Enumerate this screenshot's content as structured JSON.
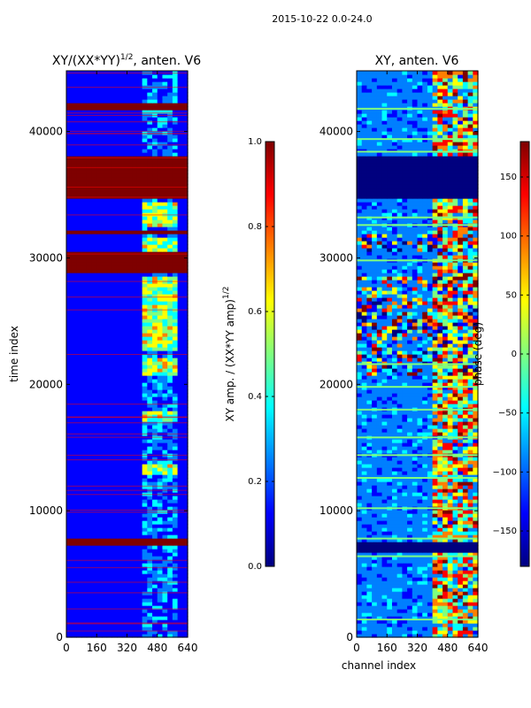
{
  "figure": {
    "suptitle": "2015-10-22 0.0-24.0"
  },
  "colormap": [
    "#00007f",
    "#0000ff",
    "#007fff",
    "#00ffff",
    "#7fff7f",
    "#ffff00",
    "#ff7f00",
    "#ff0000",
    "#7f0000"
  ],
  "chart_data": [
    {
      "type": "heatmap",
      "title_main": "XY/(XX*YY)",
      "title_sup": "1/2",
      "title_suffix": ", anten. V6",
      "xlabel": "",
      "ylabel": "time index",
      "xlim": [
        0,
        640
      ],
      "ylim": [
        0,
        44800
      ],
      "x_ticks": [
        0,
        160,
        320,
        480,
        640
      ],
      "x_tick_labels": [
        "0",
        "160",
        "320",
        "480",
        "640"
      ],
      "y_ticks": [
        0,
        10000,
        20000,
        30000,
        40000
      ],
      "y_tick_labels": [
        "0",
        "10000",
        "20000",
        "30000",
        "40000"
      ],
      "colorbar": {
        "label_main": "XY amp. / (XX*YY amp)",
        "label_sup": "1/2",
        "range": [
          0.0,
          1.0
        ],
        "ticks": [
          0.0,
          0.2,
          0.4,
          0.6,
          0.8,
          1.0
        ],
        "tick_labels": [
          "0.0",
          "0.2",
          "0.4",
          "0.6",
          "0.8",
          "1.0"
        ]
      },
      "base_value": 0.18,
      "active_channel_band": [
        400,
        590
      ],
      "bright_time_bands": [
        [
          12800,
          13800
        ],
        [
          17200,
          17800
        ],
        [
          20800,
          22200
        ],
        [
          22800,
          28600
        ],
        [
          30600,
          31600
        ],
        [
          32400,
          34400
        ]
      ],
      "saturated_time_bands": [
        [
          7400,
          7800
        ],
        [
          28800,
          30400
        ],
        [
          31800,
          32200
        ],
        [
          34600,
          38200
        ],
        [
          41600,
          42200
        ]
      ]
    },
    {
      "type": "heatmap",
      "title_main": "XY, anten. V6",
      "xlabel": "channel index",
      "ylabel": "",
      "xlim": [
        0,
        640
      ],
      "ylim": [
        0,
        44800
      ],
      "x_ticks": [
        0,
        160,
        320,
        480,
        640
      ],
      "x_tick_labels": [
        "0",
        "160",
        "320",
        "480",
        "640"
      ],
      "y_ticks": [
        0,
        10000,
        20000,
        30000,
        40000
      ],
      "y_tick_labels": [
        "0",
        "10000",
        "20000",
        "30000",
        "40000"
      ],
      "colorbar": {
        "label_main": "phase (deg)",
        "range": [
          -180,
          180
        ],
        "ticks": [
          -150,
          -100,
          -50,
          0,
          50,
          100,
          150
        ],
        "tick_labels": [
          "−150",
          "−100",
          "−50",
          "0",
          "50",
          "100",
          "150"
        ]
      },
      "base_value": -135,
      "active_channel_band": [
        400,
        640
      ],
      "dark_time_bands": [
        [
          6800,
          7600
        ],
        [
          34600,
          38200
        ]
      ],
      "noisy_time_bands": [
        [
          20800,
          28600
        ],
        [
          30600,
          31800
        ]
      ],
      "green_time_lines": [
        1400,
        6400,
        7800,
        10200,
        12600,
        14400,
        15800,
        18000,
        19800,
        21600,
        29800,
        32600,
        33200,
        38400,
        39400,
        41800
      ]
    }
  ]
}
